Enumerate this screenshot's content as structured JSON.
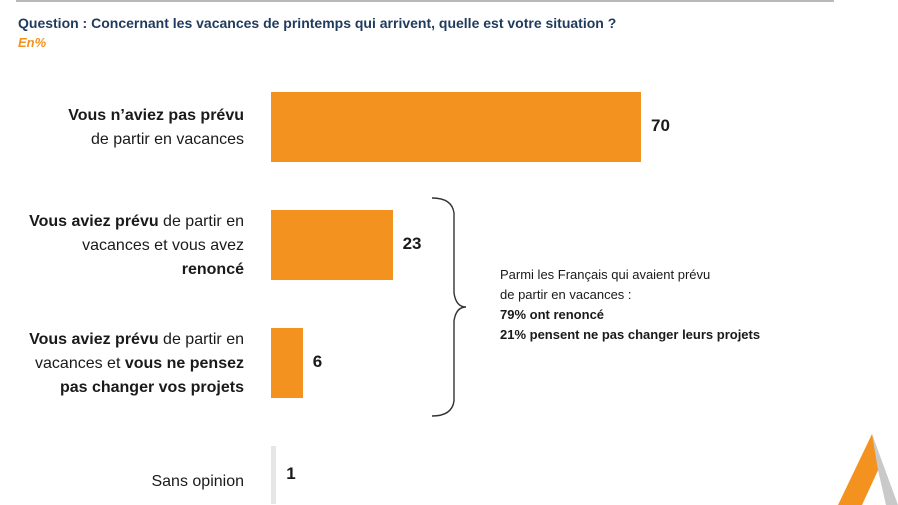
{
  "question": "Question : Concernant les vacances de printemps qui arrivent, quelle est votre situation ?",
  "unit": "En%",
  "colors": {
    "bar": "#f4921f",
    "bar_small": "#e6e6e6",
    "question": "#1f3a5c"
  },
  "chart_data": {
    "type": "bar",
    "orientation": "horizontal",
    "categories": [
      "Vous n'aviez pas prévu de partir en vacances",
      "Vous aviez prévu de partir en vacances et vous avez renoncé",
      "Vous aviez prévu de partir en vacances et vous ne pensez pas changer vos projets",
      "Sans opinion"
    ],
    "category_parts": [
      [
        [
          "Vous n’aviez pas prévu",
          "b"
        ],
        [
          "de partir en vacances",
          ""
        ]
      ],
      [
        [
          "Vous aviez prévu",
          "b"
        ],
        [
          " de partir en",
          ""
        ],
        [
          "vacances et vous avez",
          ""
        ],
        [
          "renoncé",
          "b"
        ]
      ],
      [
        [
          "Vous aviez prévu",
          "b"
        ],
        [
          " de partir en",
          ""
        ],
        [
          "vacances et ",
          ""
        ],
        [
          "vous ne pensez",
          "b"
        ],
        [
          "pas changer vos projets",
          "b"
        ]
      ],
      [
        [
          "Sans opinion",
          ""
        ]
      ]
    ],
    "values": [
      70,
      23,
      6,
      1
    ],
    "value_labels": [
      "70",
      "23",
      "6",
      "1"
    ],
    "legend": "none",
    "grid": false
  },
  "annotation": {
    "line1": "Parmi les Français qui avaient prévu",
    "line2": "de partir en vacances :",
    "line3": "79% ont renoncé",
    "line4": "21% pensent ne pas changer leurs projets"
  },
  "logo": "orange-triangle-logo"
}
